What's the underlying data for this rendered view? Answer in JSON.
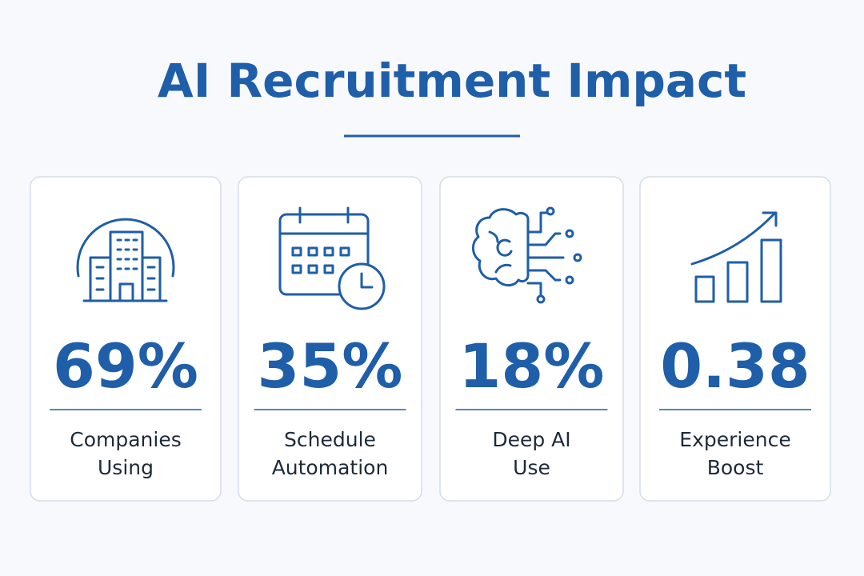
{
  "header": {
    "title": "AI Recruitment Impact"
  },
  "cards": [
    {
      "value": "69%",
      "label": [
        "Companies",
        "Using"
      ]
    },
    {
      "value": "35%",
      "label": [
        "Schedule",
        "Automation"
      ]
    },
    {
      "value": "18%",
      "label": [
        "Deep AI",
        "Use"
      ]
    },
    {
      "value": "0.38",
      "label": [
        "Experience",
        "Boost"
      ]
    }
  ]
}
